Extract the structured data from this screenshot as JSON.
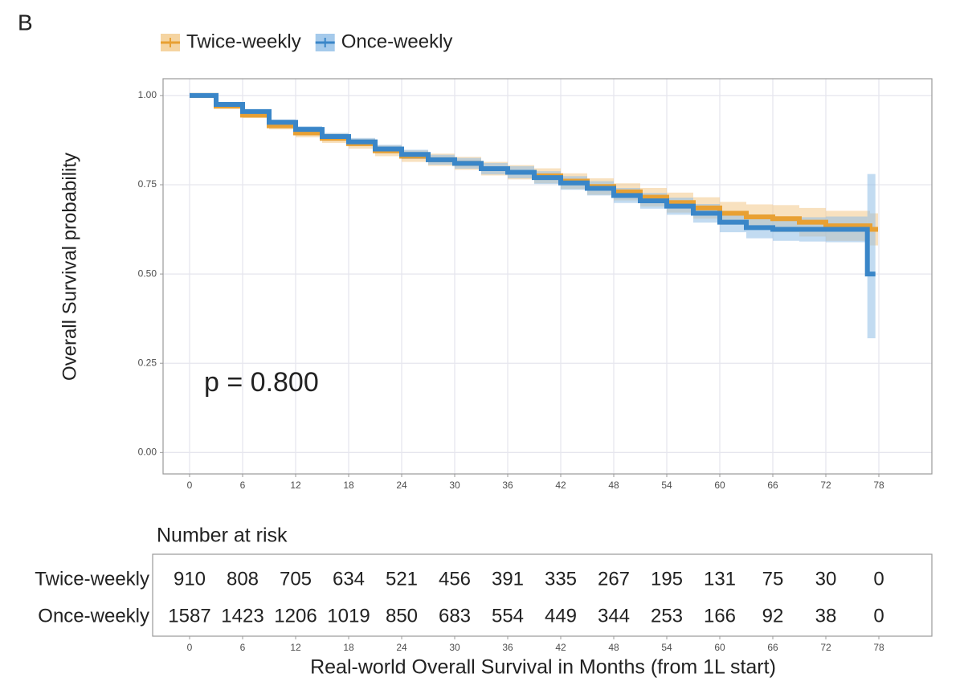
{
  "panel_label": "B",
  "chart_data": {
    "type": "survival",
    "ylabel": "Overall Survival probability",
    "xlabel": "Real-world Overall Survival in Months (from 1L start)",
    "annotation": "p = 0.800",
    "xlim": [
      -3,
      84
    ],
    "ylim": [
      -0.06,
      1.047
    ],
    "xticks": [
      0,
      6,
      12,
      18,
      24,
      30,
      36,
      42,
      48,
      54,
      60,
      66,
      72,
      78
    ],
    "yticks": [
      {
        "value": 0,
        "label": "0.00"
      },
      {
        "value": 0.25,
        "label": "0.25"
      },
      {
        "value": 0.5,
        "label": "0.50"
      },
      {
        "value": 0.75,
        "label": "0.75"
      },
      {
        "value": 1,
        "label": "1.00"
      }
    ],
    "grid": true,
    "series": [
      {
        "name": "Twice-weekly",
        "color": "#e8a033",
        "band_color": "#f3c98a",
        "x": [
          0,
          3,
          6,
          9,
          12,
          15,
          18,
          21,
          24,
          27,
          30,
          33,
          36,
          39,
          42,
          45,
          48,
          51,
          54,
          57,
          60,
          63,
          66,
          69,
          72,
          77
        ],
        "values": [
          1.0,
          0.97,
          0.945,
          0.915,
          0.895,
          0.88,
          0.865,
          0.845,
          0.83,
          0.82,
          0.81,
          0.795,
          0.785,
          0.775,
          0.76,
          0.745,
          0.73,
          0.715,
          0.7,
          0.685,
          0.67,
          0.66,
          0.655,
          0.645,
          0.635,
          0.625
        ],
        "lower": [
          0.997,
          0.964,
          0.937,
          0.905,
          0.883,
          0.867,
          0.851,
          0.83,
          0.814,
          0.803,
          0.792,
          0.776,
          0.765,
          0.754,
          0.738,
          0.722,
          0.706,
          0.689,
          0.672,
          0.655,
          0.638,
          0.625,
          0.617,
          0.605,
          0.593,
          0.58
        ],
        "upper": [
          1.0,
          0.976,
          0.953,
          0.925,
          0.907,
          0.893,
          0.879,
          0.86,
          0.846,
          0.837,
          0.828,
          0.814,
          0.805,
          0.796,
          0.782,
          0.768,
          0.754,
          0.741,
          0.728,
          0.715,
          0.702,
          0.695,
          0.693,
          0.685,
          0.677,
          0.67
        ]
      },
      {
        "name": "Once-weekly",
        "color": "#3a86c8",
        "band_color": "#8fbde6",
        "x": [
          0,
          3,
          6,
          9,
          12,
          15,
          18,
          21,
          24,
          27,
          30,
          33,
          36,
          39,
          42,
          45,
          48,
          51,
          54,
          57,
          60,
          63,
          66,
          69,
          72,
          76.7
        ],
        "values": [
          1.0,
          0.975,
          0.955,
          0.925,
          0.905,
          0.885,
          0.87,
          0.85,
          0.835,
          0.82,
          0.81,
          0.795,
          0.785,
          0.77,
          0.755,
          0.74,
          0.72,
          0.705,
          0.69,
          0.67,
          0.645,
          0.63,
          0.625,
          0.625,
          0.625,
          0.5
        ],
        "lower": [
          0.998,
          0.97,
          0.949,
          0.917,
          0.896,
          0.875,
          0.859,
          0.838,
          0.822,
          0.806,
          0.795,
          0.779,
          0.768,
          0.752,
          0.736,
          0.72,
          0.699,
          0.683,
          0.666,
          0.644,
          0.617,
          0.6,
          0.593,
          0.591,
          0.589,
          0.32
        ],
        "upper": [
          1.0,
          0.98,
          0.961,
          0.933,
          0.914,
          0.895,
          0.881,
          0.862,
          0.848,
          0.834,
          0.825,
          0.811,
          0.802,
          0.788,
          0.774,
          0.76,
          0.741,
          0.727,
          0.714,
          0.696,
          0.673,
          0.66,
          0.657,
          0.659,
          0.661,
          0.78
        ]
      }
    ],
    "risk_table": {
      "title": "Number at risk",
      "x": [
        0,
        6,
        12,
        18,
        24,
        30,
        36,
        42,
        48,
        54,
        60,
        66,
        72,
        78
      ],
      "rows": [
        {
          "name": "Twice-weekly",
          "color": "#e8a033",
          "values": [
            910,
            808,
            705,
            634,
            521,
            456,
            391,
            335,
            267,
            195,
            131,
            75,
            30,
            0
          ]
        },
        {
          "name": "Once-weekly",
          "color": "#3a86c8",
          "values": [
            1587,
            1423,
            1206,
            1019,
            850,
            683,
            554,
            449,
            344,
            253,
            166,
            92,
            38,
            0
          ]
        }
      ]
    }
  }
}
